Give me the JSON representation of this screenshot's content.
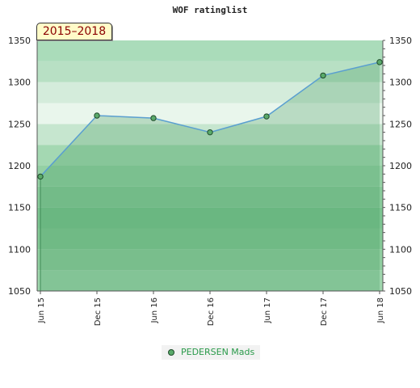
{
  "chart_data": {
    "type": "area",
    "title": "WOF ratinglist",
    "period_label": "2015–2018",
    "x": [
      "Jun 15",
      "Dec 15",
      "Jun 16",
      "Dec 16",
      "Jun 17",
      "Dec 17",
      "Jun 18"
    ],
    "series": [
      {
        "name": "PEDERSEN Mads",
        "values": [
          1187,
          1260,
          1257,
          1240,
          1259,
          1308,
          1324
        ]
      }
    ],
    "ylim": [
      1050,
      1350
    ],
    "yticks": [
      1050,
      1100,
      1150,
      1200,
      1250,
      1300,
      1350
    ],
    "legend_position": "bottom-center",
    "colors": {
      "line": "#5a9fd0",
      "marker": "#5aaa6a",
      "marker_edge": "#1e4a2a",
      "legend_text": "#2a9a4a",
      "period_text": "#8b0000",
      "period_bg": "#fffbc8"
    }
  }
}
